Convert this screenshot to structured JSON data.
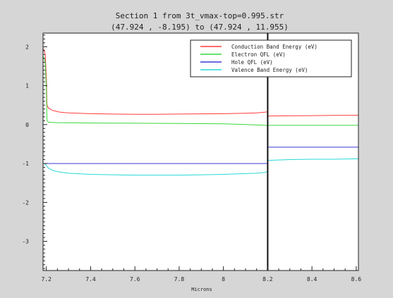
{
  "chart_data": {
    "type": "line",
    "title_line1": "Section 1 from 3t_vmax-top=0.995.str",
    "title_line2": "(47.924 , -8.195) to (47.924 , 11.955)",
    "xlabel": "Microns",
    "ylabel": "",
    "xlim": [
      7.185,
      8.61
    ],
    "ylim": [
      -3.75,
      2.35
    ],
    "x_ticks": [
      7.2,
      7.4,
      7.6,
      7.8,
      8,
      8.2,
      8.4,
      8.6
    ],
    "x_tick_labels": [
      "7.2",
      "7.4",
      "7.6",
      "7.8",
      "8",
      "8.2",
      "8.4",
      "8.6"
    ],
    "y_ticks": [
      2,
      1,
      0,
      -1,
      -2,
      -3
    ],
    "y_tick_labels": [
      "2",
      "1",
      "0",
      "-1",
      "-2",
      "-3"
    ],
    "interface_x": 8.2,
    "grid": false,
    "legend_position": "top-right",
    "series": [
      {
        "name": "Conduction Band Energy (eV)",
        "color": "#ff3b3b",
        "x": [
          7.185,
          7.19,
          7.195,
          7.2,
          7.203,
          7.21,
          7.23,
          7.26,
          7.3,
          7.4,
          7.5,
          7.6,
          7.7,
          7.8,
          7.9,
          8.0,
          8.1,
          8.15,
          8.19,
          8.2,
          8.2,
          8.3,
          8.4,
          8.5,
          8.61
        ],
        "y": [
          1.95,
          1.9,
          1.8,
          1.2,
          0.5,
          0.42,
          0.36,
          0.32,
          0.3,
          0.28,
          0.27,
          0.265,
          0.265,
          0.27,
          0.275,
          0.28,
          0.29,
          0.3,
          0.32,
          0.33,
          0.22,
          0.225,
          0.23,
          0.235,
          0.24
        ]
      },
      {
        "name": "Electron QFL (eV)",
        "color": "#38d838",
        "x": [
          7.185,
          7.19,
          7.195,
          7.2,
          7.203,
          7.21,
          7.25,
          7.3,
          7.4,
          7.6,
          7.8,
          8.0,
          8.1,
          8.19,
          8.2,
          8.2,
          8.3,
          8.4,
          8.5,
          8.61
        ],
        "y": [
          1.75,
          1.7,
          1.6,
          0.9,
          0.1,
          0.06,
          0.05,
          0.045,
          0.04,
          0.035,
          0.03,
          0.02,
          0.0,
          -0.02,
          -0.03,
          -0.02,
          -0.02,
          -0.02,
          -0.02,
          -0.02
        ]
      },
      {
        "name": "Hole QFL (eV)",
        "color": "#3a3ad8",
        "x": [
          7.185,
          7.2,
          7.6,
          8.0,
          8.2,
          8.2,
          8.4,
          8.61
        ],
        "y": [
          -1.0,
          -1.0,
          -1.0,
          -1.0,
          -1.0,
          -0.58,
          -0.58,
          -0.58
        ]
      },
      {
        "name": "Valence Band Energy (eV)",
        "color": "#2ad8d8",
        "x": [
          7.185,
          7.19,
          7.2,
          7.21,
          7.23,
          7.26,
          7.3,
          7.4,
          7.5,
          7.6,
          7.7,
          7.8,
          7.9,
          8.0,
          8.1,
          8.15,
          8.19,
          8.2,
          8.2,
          8.3,
          8.4,
          8.5,
          8.61
        ],
        "y": [
          -1.0,
          -1.0,
          -1.05,
          -1.12,
          -1.18,
          -1.22,
          -1.25,
          -1.28,
          -1.29,
          -1.3,
          -1.3,
          -1.3,
          -1.29,
          -1.28,
          -1.26,
          -1.25,
          -1.23,
          -1.2,
          -0.92,
          -0.9,
          -0.89,
          -0.89,
          -0.88
        ]
      }
    ]
  }
}
